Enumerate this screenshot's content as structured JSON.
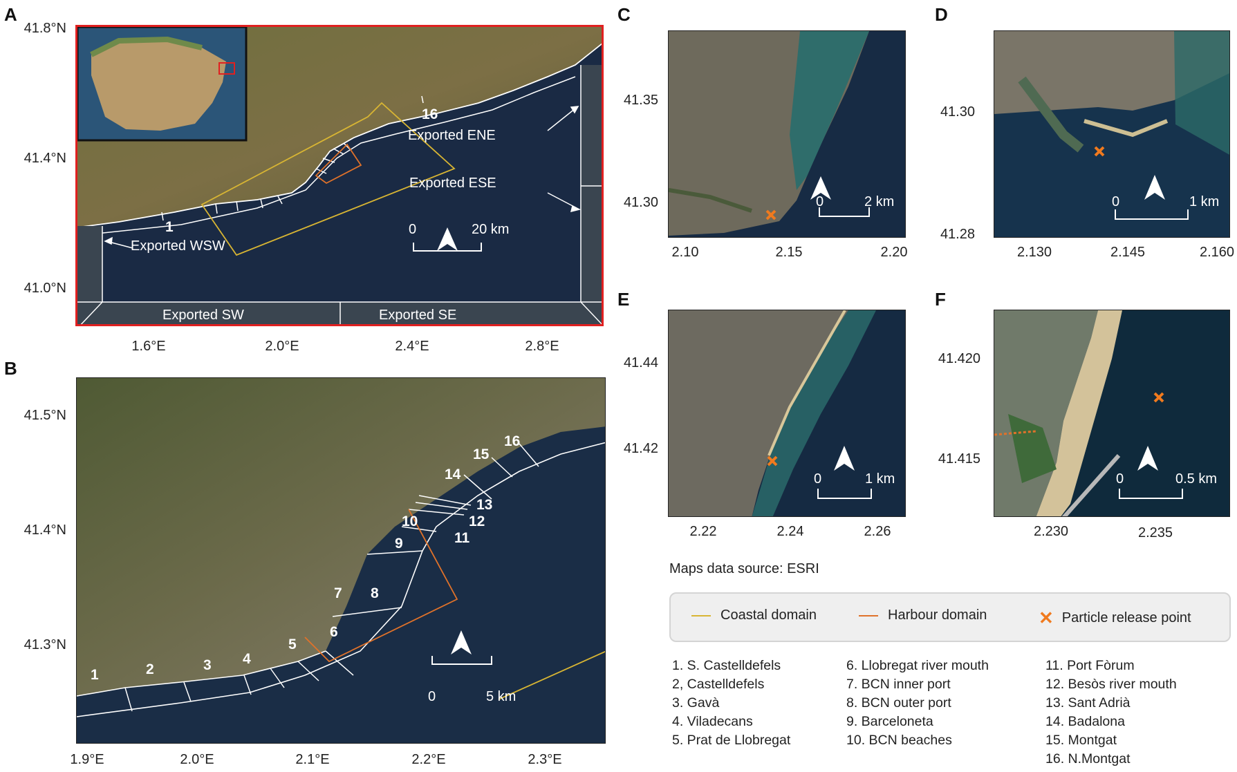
{
  "panels": {
    "a": "A",
    "b": "B",
    "c": "C",
    "d": "D",
    "e": "E",
    "f": "F"
  },
  "panel_a": {
    "y_ticks": [
      "41.8°N",
      "41.4°N",
      "41.0°N"
    ],
    "x_ticks": [
      "1.6°E",
      "2.0°E",
      "2.4°E",
      "2.8°E"
    ],
    "labels": {
      "seg1": "1",
      "seg16": "16",
      "exported_wsw": "Exported WSW",
      "exported_ene": "Exported ENE",
      "exported_ese": "Exported ESE",
      "exported_sw": "Exported SW",
      "exported_se": "Exported SE"
    },
    "scale": {
      "zero": "0",
      "end": "20 km"
    }
  },
  "panel_b": {
    "y_ticks": [
      "41.5°N",
      "41.4°N",
      "41.3°N"
    ],
    "x_ticks": [
      "1.9°E",
      "2.0°E",
      "2.1°E",
      "2.2°E",
      "2.3°E"
    ],
    "segments": [
      "1",
      "2",
      "3",
      "4",
      "5",
      "6",
      "7",
      "8",
      "9",
      "10",
      "11",
      "12",
      "13",
      "14",
      "15",
      "16"
    ],
    "scale": {
      "zero": "0",
      "end": "5 km"
    }
  },
  "panel_c": {
    "y_ticks": [
      "41.35",
      "41.30"
    ],
    "x_ticks": [
      "2.10",
      "2.15",
      "2.20"
    ],
    "scale": {
      "zero": "0",
      "end": "2 km"
    }
  },
  "panel_d": {
    "y_ticks": [
      "41.30",
      "41.28"
    ],
    "x_ticks": [
      "2.130",
      "2.145",
      "2.160"
    ],
    "scale": {
      "zero": "0",
      "end": "1 km"
    }
  },
  "panel_e": {
    "y_ticks": [
      "41.44",
      "41.42"
    ],
    "x_ticks": [
      "2.22",
      "2.24",
      "2.26"
    ],
    "scale": {
      "zero": "0",
      "end": "1 km"
    }
  },
  "panel_f": {
    "y_ticks": [
      "41.420",
      "41.415"
    ],
    "x_ticks": [
      "2.230",
      "2.235"
    ],
    "scale": {
      "zero": "0",
      "end": "0.5 km"
    }
  },
  "source": "Maps data source: ESRI",
  "legend": {
    "coastal": "Coastal domain",
    "harbour": "Harbour domain",
    "release": "Particle release point",
    "colors": {
      "coastal": "#d8b533",
      "harbour": "#e0722a",
      "release": "#f07a1e",
      "frame": "#e02020"
    }
  },
  "segment_list": [
    [
      "1. S. Castelldefels",
      "2, Castelldefels",
      "3. Gavà",
      "4. Viladecans",
      "5. Prat de Llobregat"
    ],
    [
      "6. Llobregat river mouth",
      "7. BCN inner port",
      "8. BCN outer port",
      "9. Barceloneta",
      "10. BCN beaches"
    ],
    [
      "11. Port Fòrum",
      "12. Besòs river mouth",
      "13. Sant Adrià",
      "14. Badalona",
      "15. Montgat",
      "16. N.Montgat"
    ]
  ]
}
